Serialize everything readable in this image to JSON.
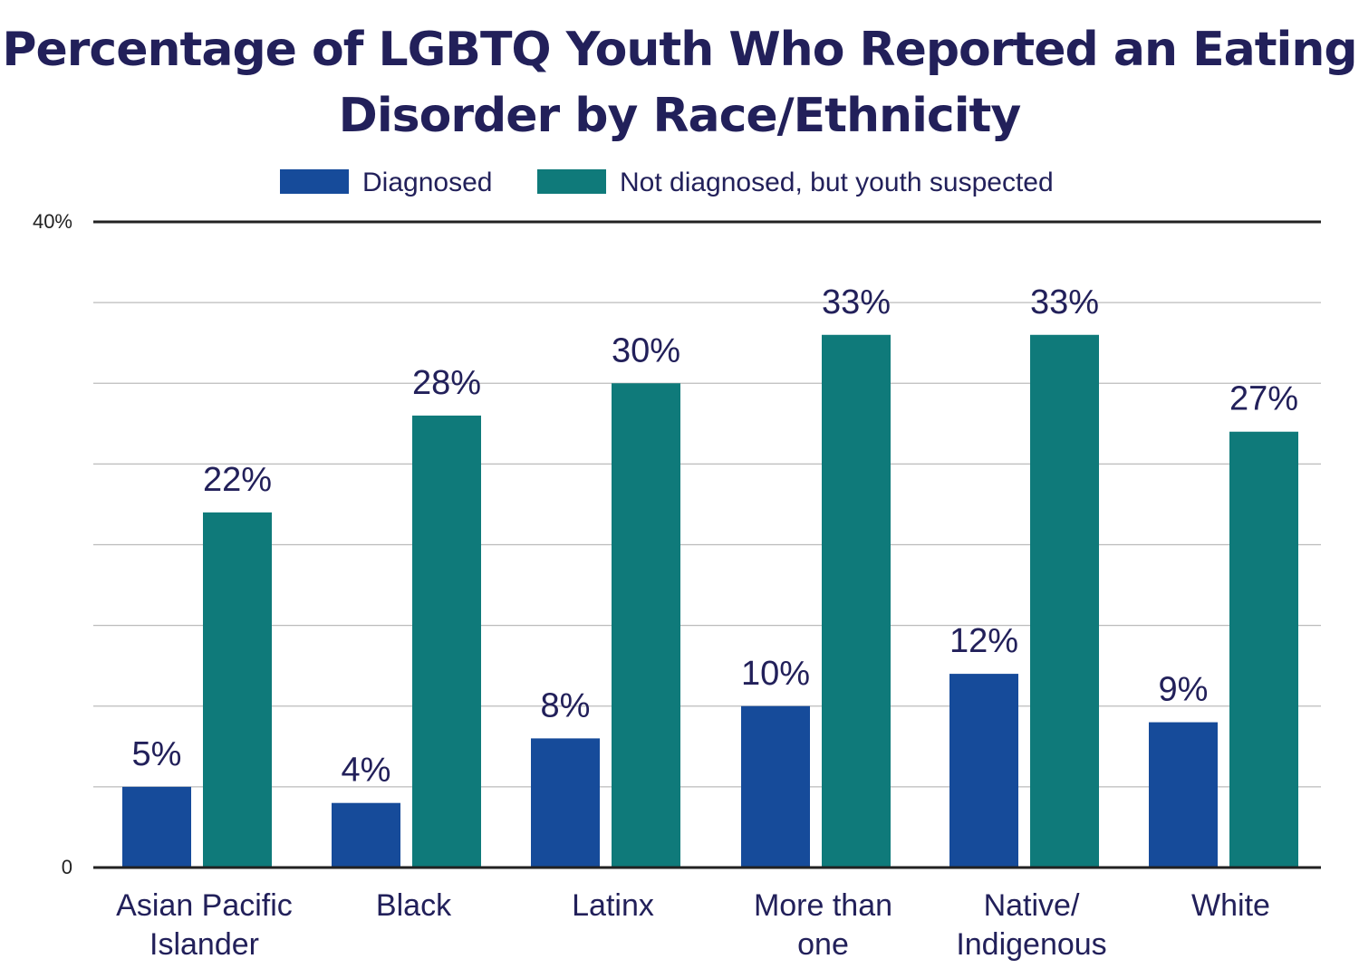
{
  "chart_data": {
    "type": "bar",
    "title_lines": [
      "Percentage of LGBTQ Youth Who Reported an Eating",
      "Disorder by Race/Ethnicity"
    ],
    "categories": [
      [
        "Asian Pacific",
        "Islander"
      ],
      [
        "Black"
      ],
      [
        "Latinx"
      ],
      [
        "More than",
        "one"
      ],
      [
        "Native/",
        "Indigenous"
      ],
      [
        "White"
      ]
    ],
    "series": [
      {
        "name": "Diagnosed",
        "color": "#164b9a",
        "values": [
          5,
          4,
          8,
          10,
          12,
          9
        ],
        "labels": [
          "5%",
          "4%",
          "8%",
          "10%",
          "12%",
          "9%"
        ]
      },
      {
        "name": "Not diagnosed, but youth suspected",
        "color": "#0f7a7a",
        "values": [
          22,
          28,
          30,
          33,
          33,
          27
        ],
        "labels": [
          "22%",
          "28%",
          "30%",
          "33%",
          "33%",
          "27%"
        ]
      }
    ],
    "ylim": [
      0,
      40
    ],
    "ytick_labels": [
      "0",
      "40%"
    ],
    "grid": true,
    "legend_position": "top-center",
    "colors": {
      "title": "#22205a",
      "text": "#22205a",
      "grid": "#bbbbbb",
      "axis": "#222222",
      "tick": "#222222"
    }
  }
}
